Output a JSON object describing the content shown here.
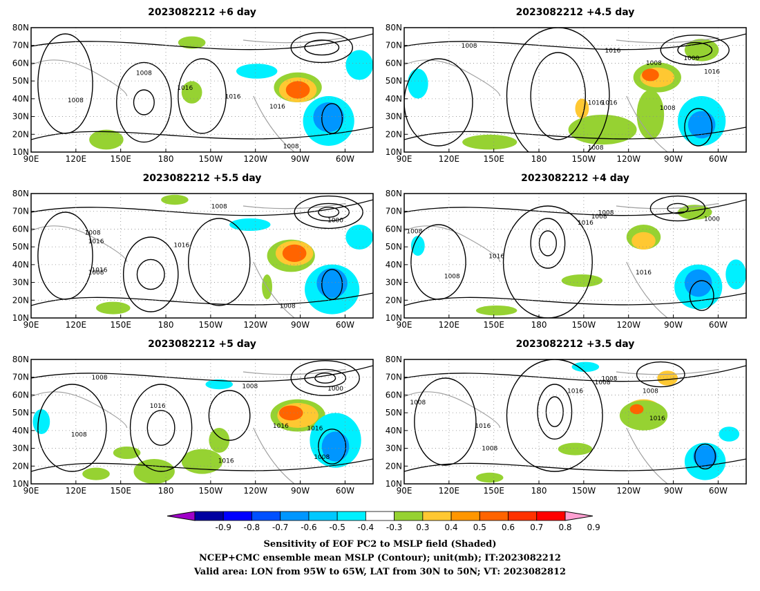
{
  "panels": [
    {
      "title": "2023082212 +6 day",
      "contour_labels": [
        "1008",
        "1008",
        "1016",
        "1016",
        "1016",
        "1008"
      ],
      "x_ticks": [
        "90E",
        "120E",
        "150E",
        "180",
        "150W",
        "120W",
        "90W",
        "60W"
      ],
      "y_ticks": [
        "80N",
        "70N",
        "60N",
        "50N",
        "40N",
        "30N",
        "20N",
        "10N"
      ]
    },
    {
      "title": "2023082212 +4.5 day",
      "contour_labels": [
        "1008",
        "1016",
        "1016",
        "1008",
        "1000",
        "1016",
        "1016",
        "1008",
        "1008"
      ],
      "x_ticks": [
        "90E",
        "120E",
        "150E",
        "180",
        "150W",
        "120W",
        "90W",
        "60W"
      ],
      "y_ticks": [
        "80N",
        "70N",
        "60N",
        "50N",
        "40N",
        "30N",
        "20N",
        "10N"
      ]
    },
    {
      "title": "2023082212 +5.5 day",
      "contour_labels": [
        "1008",
        "1016",
        "1008",
        "1016",
        "1016",
        "1008",
        "1000",
        "1008"
      ],
      "x_ticks": [
        "90E",
        "120E",
        "150E",
        "180",
        "150W",
        "120W",
        "90W",
        "60W"
      ],
      "y_ticks": [
        "80N",
        "70N",
        "60N",
        "50N",
        "40N",
        "30N",
        "20N",
        "10N"
      ]
    },
    {
      "title": "2023082212 +4 day",
      "contour_labels": [
        "1008",
        "1016",
        "1008",
        "1008",
        "1000",
        "1016",
        "1016",
        "1008"
      ],
      "x_ticks": [
        "90E",
        "120E",
        "150E",
        "180",
        "150W",
        "120W",
        "90W",
        "60W"
      ],
      "y_ticks": [
        "80N",
        "70N",
        "60N",
        "50N",
        "40N",
        "30N",
        "20N",
        "10N"
      ]
    },
    {
      "title": "2023082212 +5 day",
      "contour_labels": [
        "1008",
        "1008",
        "1016",
        "1000",
        "1016",
        "1016",
        "1008",
        "1008",
        "1016"
      ],
      "x_ticks": [
        "90E",
        "120E",
        "150E",
        "180",
        "150W",
        "120W",
        "90W",
        "60W"
      ],
      "y_ticks": [
        "80N",
        "70N",
        "60N",
        "50N",
        "40N",
        "30N",
        "20N",
        "10N"
      ]
    },
    {
      "title": "2023082212 +3.5 day",
      "contour_labels": [
        "1008",
        "1016",
        "1008",
        "1008",
        "1016",
        "1008",
        "1016",
        "1008"
      ],
      "x_ticks": [
        "90E",
        "120E",
        "150E",
        "180",
        "150W",
        "120W",
        "90W",
        "60W"
      ],
      "y_ticks": [
        "80N",
        "70N",
        "60N",
        "50N",
        "40N",
        "30N",
        "20N",
        "10N"
      ]
    }
  ],
  "colorbar": {
    "labels": [
      "-0.9",
      "-0.8",
      "-0.7",
      "-0.6",
      "-0.5",
      "-0.4",
      "-0.3",
      "0.3",
      "0.4",
      "0.5",
      "0.6",
      "0.7",
      "0.8",
      "0.9"
    ],
    "colors": [
      "#a000c8",
      "#0000a0",
      "#0000ff",
      "#0050ff",
      "#0096ff",
      "#00c8ff",
      "#00f0ff",
      "#ffffff",
      "#96d232",
      "#ffc832",
      "#ff9600",
      "#ff6400",
      "#ff3200",
      "#ff0000",
      "#ffa0d2"
    ]
  },
  "caption": {
    "line1": "Sensitivity of EOF PC2 to MSLP field (Shaded)",
    "line2": "NCEP+CMC ensemble mean MSLP (Contour); unit(mb); IT:2023082212",
    "line3": "Valid area: LON from 95W to 65W, LAT from 30N to 50N; VT: 2023082812"
  }
}
